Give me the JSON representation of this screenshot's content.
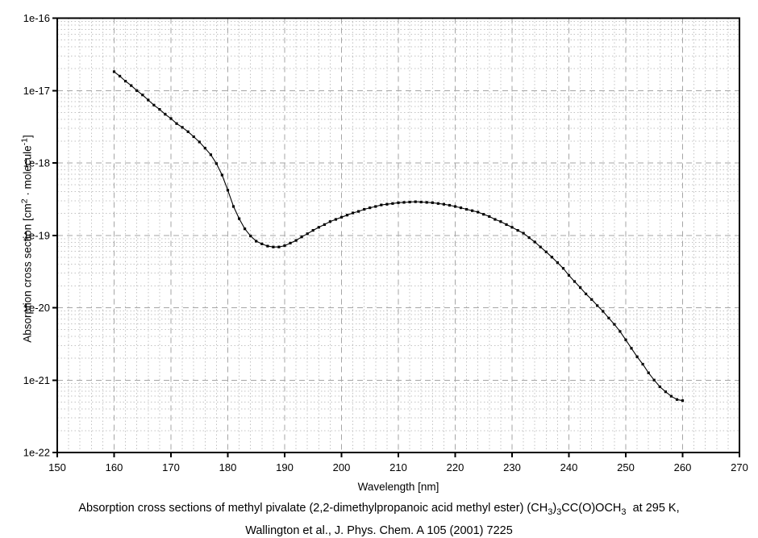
{
  "figure": {
    "caption_line1_segments": [
      {
        "t": "Absorption cross sections of methyl pivalate (2,2-dimethylpropanoic acid methyl ester) (CH"
      },
      {
        "t": "3",
        "sub": true
      },
      {
        "t": ")"
      },
      {
        "t": "3",
        "sub": true
      },
      {
        "t": "CC(O)OCH"
      },
      {
        "t": "3",
        "sub": true
      },
      {
        "t": "  at 295 K,"
      }
    ],
    "caption_line2": "Wallington et al., J. Phys. Chem. A 105 (2001) 7225"
  },
  "chart_data": {
    "type": "line",
    "title": "",
    "xlabel": "Wavelength [nm]",
    "ylabel_segments": [
      {
        "t": "Absorption cross section [cm"
      },
      {
        "t": "2",
        "sup": true
      },
      {
        "t": " · molecule"
      },
      {
        "t": "-1",
        "sup": true
      },
      {
        "t": "]"
      }
    ],
    "xlim": [
      150,
      270
    ],
    "x_ticks": [
      150,
      160,
      170,
      180,
      190,
      200,
      210,
      220,
      230,
      240,
      250,
      260,
      270
    ],
    "x_minor_step": 2,
    "y_scale": "log",
    "ylim": [
      1e-22,
      1e-16
    ],
    "y_ticks": [
      {
        "label": "1e-16",
        "value": 1e-16
      },
      {
        "label": "1e-17",
        "value": 1e-17
      },
      {
        "label": "1e-18",
        "value": 1e-18
      },
      {
        "label": "1e-19",
        "value": 1e-19
      },
      {
        "label": "1e-20",
        "value": 1e-20
      },
      {
        "label": "1e-21",
        "value": 1e-21
      },
      {
        "label": "1e-22",
        "value": 1e-22
      }
    ],
    "grid": {
      "major": true,
      "minor": true,
      "major_color": "#a6a6a6",
      "minor_color": "#c3c3c3"
    },
    "legend": "none",
    "series": [
      {
        "name": "absorption cross section, methyl pivalate, 295 K",
        "color": "#000000",
        "marker": "square",
        "x_start": 160,
        "x_step": 1,
        "x_end": 260,
        "values": [
          1.82e-17,
          1.58e-17,
          1.35e-17,
          1.17e-17,
          1e-17,
          8.7e-18,
          7.4e-18,
          6.3e-18,
          5.5e-18,
          4.7e-18,
          4.1e-18,
          3.5e-18,
          3.1e-18,
          2.7e-18,
          2.3e-18,
          1.95e-18,
          1.6e-18,
          1.3e-18,
          9.8e-19,
          6.8e-19,
          4.2e-19,
          2.5e-19,
          1.7e-19,
          1.23e-19,
          9.8e-20,
          8.3e-20,
          7.6e-20,
          7.1e-20,
          6.9e-20,
          6.9e-20,
          7.2e-20,
          7.8e-20,
          8.5e-20,
          9.5e-20,
          1.05e-19,
          1.17e-19,
          1.29e-19,
          1.41e-19,
          1.55e-19,
          1.66e-19,
          1.78e-19,
          1.9e-19,
          2.04e-19,
          2.14e-19,
          2.29e-19,
          2.4e-19,
          2.5e-19,
          2.63e-19,
          2.69e-19,
          2.75e-19,
          2.82e-19,
          2.85e-19,
          2.88e-19,
          2.91e-19,
          2.88e-19,
          2.85e-19,
          2.82e-19,
          2.75e-19,
          2.69e-19,
          2.6e-19,
          2.5e-19,
          2.4e-19,
          2.29e-19,
          2.19e-19,
          2.09e-19,
          1.95e-19,
          1.82e-19,
          1.66e-19,
          1.55e-19,
          1.41e-19,
          1.29e-19,
          1.17e-19,
          1.07e-19,
          9.3e-20,
          8.1e-20,
          6.9e-20,
          5.9e-20,
          5e-20,
          4.2e-20,
          3.5e-20,
          2.8e-20,
          2.3e-20,
          1.9e-20,
          1.55e-20,
          1.3e-20,
          1.07e-20,
          8.9e-21,
          7.2e-21,
          5.9e-21,
          4.7e-21,
          3.6e-21,
          2.75e-21,
          2.1e-21,
          1.66e-21,
          1.26e-21,
          1e-21,
          8.1e-22,
          6.9e-22,
          6e-22,
          5.4e-22,
          5.2e-22
        ]
      }
    ]
  }
}
